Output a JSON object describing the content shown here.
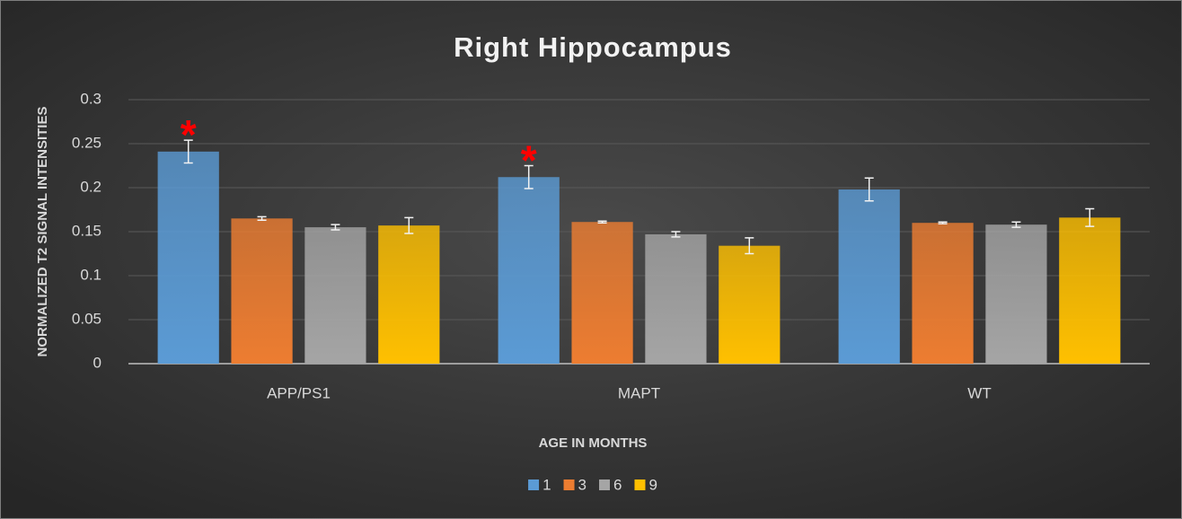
{
  "chart_data": {
    "type": "bar",
    "title": "Right Hippocampus",
    "y_label": "NORMALIZED T2 SIGNAL INTENSITIES",
    "x_label": "AGE IN MONTHS",
    "categories": [
      "APP/PS1",
      "MAPT",
      "WT"
    ],
    "series": [
      {
        "name": "1",
        "color": "#5b9bd5",
        "values": [
          0.241,
          0.212,
          0.198
        ],
        "errors": [
          0.013,
          0.013,
          0.013
        ]
      },
      {
        "name": "3",
        "color": "#ed7d31",
        "values": [
          0.165,
          0.161,
          0.16
        ],
        "errors": [
          0.002,
          0.001,
          0.001
        ]
      },
      {
        "name": "6",
        "color": "#a5a5a5",
        "values": [
          0.155,
          0.147,
          0.158
        ],
        "errors": [
          0.003,
          0.003,
          0.003
        ]
      },
      {
        "name": "9",
        "color": "#ffc000",
        "values": [
          0.157,
          0.134,
          0.166
        ],
        "errors": [
          0.009,
          0.009,
          0.01
        ]
      }
    ],
    "annotations": [
      {
        "text": "*",
        "category": "APP/PS1",
        "series": "1",
        "color": "#ff0000"
      },
      {
        "text": "*",
        "category": "MAPT",
        "series": "1",
        "color": "#ff0000"
      }
    ],
    "ylim": [
      0,
      0.3
    ],
    "yticks": [
      0,
      0.05,
      0.1,
      0.15,
      0.2,
      0.25,
      0.3
    ],
    "grid": true,
    "legend": "bottom"
  }
}
